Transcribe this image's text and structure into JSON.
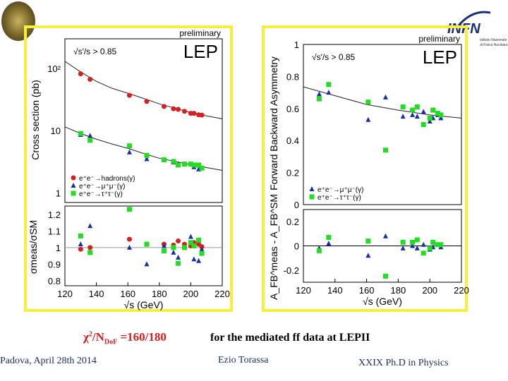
{
  "slide": {
    "formula_chi": "χ",
    "formula_sup": "2",
    "formula_n": "/N",
    "formula_sub": "DoF",
    "formula_val": " =160/180",
    "caption": "for the mediated ff data at LEPII",
    "footer_left": "Padova, April 28th 2014",
    "footer_center": "Ezio Torassa",
    "footer_right": "XXIX  Ph.D in Physics",
    "logo_right_text": "INFN",
    "logo_right_sub1": "Istituto Nazionale",
    "logo_right_sub2": "di Fisica Nucleare",
    "colors": {
      "frame": "#f5f03a",
      "highlight": "#d42020",
      "text_blue": "#1a2e5a"
    }
  },
  "chart_data": [
    {
      "type": "scatter",
      "preliminary": "preliminary",
      "label": "LEP",
      "cut": "√s′/s > 0.85",
      "ylabel": "Cross section (pb)",
      "yscale": "log",
      "ylim": [
        0.7,
        300
      ],
      "yticks": [
        "10²",
        "10",
        "1"
      ],
      "x": [
        130,
        136,
        161,
        172,
        183,
        189,
        192,
        196,
        200,
        202,
        205,
        207
      ],
      "series": [
        {
          "name": "e⁺e⁻→hadrons(γ)",
          "color": "#d42020",
          "marker": "circle",
          "values": [
            82,
            67,
            37,
            29.5,
            24.5,
            22.5,
            22,
            20.5,
            19,
            19,
            18,
            17.8
          ]
        },
        {
          "name": "e⁺e⁻→μ⁺μ⁻(γ)",
          "color": "#1a2ea8",
          "marker": "triangle",
          "values": [
            8.6,
            8.3,
            4.5,
            3.5,
            3.4,
            3.1,
            2.9,
            2.9,
            2.9,
            2.6,
            2.4,
            2.5
          ]
        },
        {
          "name": "e⁺e⁻→τ⁺τ⁻(γ)",
          "color": "#22dd22",
          "marker": "square",
          "values": [
            9.0,
            7.0,
            5.7,
            4.0,
            3.4,
            3.2,
            2.8,
            2.9,
            2.9,
            2.8,
            2.8,
            2.5
          ]
        }
      ],
      "sm_curves": {
        "x": [
          120,
          130,
          140,
          150,
          160,
          170,
          180,
          190,
          200,
          210,
          220
        ],
        "hadrons": [
          130,
          88,
          62,
          48,
          40,
          33,
          27,
          23,
          19.5,
          17.3,
          15.5
        ],
        "leptons": [
          11.5,
          9,
          7.3,
          6.1,
          5.2,
          4.3,
          3.6,
          3.2,
          2.85,
          2.55,
          2.3
        ]
      }
    },
    {
      "type": "scatter",
      "ylabel": "σmeas/σSM",
      "ylim": [
        0.77,
        1.25
      ],
      "yticks": [
        1.2,
        1.1,
        1,
        0.9,
        0.8
      ],
      "xlabel": "√s (GeV)",
      "xlim": [
        120,
        220
      ],
      "xticks": [
        120,
        140,
        160,
        180,
        200,
        220
      ],
      "reference": 1,
      "x": [
        130,
        136,
        161,
        172,
        183,
        189,
        192,
        196,
        200,
        202,
        205,
        207
      ],
      "series": [
        {
          "marker": "circle",
          "color": "#d42020",
          "values": [
            0.99,
            1.0,
            1.05,
            1.02,
            1.02,
            1.015,
            1.04,
            1.02,
            1.01,
            1.03,
            1.02,
            1.005
          ]
        },
        {
          "marker": "triangle",
          "color": "#1a2ea8",
          "values": [
            1.02,
            1.13,
            1.0,
            0.9,
            1.01,
            0.97,
            0.94,
            1.0,
            1.065,
            0.93,
            0.92,
            0.99
          ]
        },
        {
          "marker": "square",
          "color": "#22dd22",
          "values": [
            1.07,
            0.97,
            1.23,
            1.02,
            0.98,
            1.0,
            0.905,
            1.0,
            1.03,
            1.01,
            1.045,
            0.965
          ]
        }
      ]
    },
    {
      "type": "scatter",
      "preliminary": "preliminary",
      "label": "LEP",
      "cut": "√s′/s > 0.85",
      "ylabel": "Forward Backward Asymmetry",
      "ylim": [
        0,
        1
      ],
      "yticks": [
        1,
        0.8,
        0.6,
        0.4,
        0.2,
        0
      ],
      "x": [
        130,
        136,
        161,
        172,
        183,
        189,
        192,
        196,
        200,
        202,
        205,
        207
      ],
      "series": [
        {
          "name": "e⁺e⁻→μ⁺μ⁻(γ)",
          "color": "#1a2ea8",
          "marker": "triangle",
          "values": [
            0.69,
            0.7,
            0.53,
            0.67,
            0.55,
            0.56,
            0.55,
            0.58,
            0.52,
            0.54,
            0.56,
            0.54
          ]
        },
        {
          "name": "e⁺e⁻→τ⁺τ⁻(γ)",
          "color": "#22dd22",
          "marker": "square",
          "values": [
            0.66,
            0.75,
            0.64,
            0.34,
            0.61,
            0.59,
            0.61,
            0.5,
            0.54,
            0.59,
            0.57,
            0.56
          ]
        }
      ],
      "sm_curve": {
        "x": [
          120,
          140,
          160,
          180,
          200,
          220
        ],
        "values": [
          0.735,
          0.68,
          0.625,
          0.59,
          0.56,
          0.54
        ]
      }
    },
    {
      "type": "scatter",
      "ylabel": "A_FB^meas - A_FB^SM",
      "ylim": [
        -0.3,
        0.3
      ],
      "yticks": [
        0.2,
        0,
        -0.2
      ],
      "xlabel": "√s (GeV)",
      "xlim": [
        120,
        220
      ],
      "xticks": [
        120,
        140,
        160,
        180,
        200,
        220
      ],
      "reference": 0,
      "x": [
        130,
        136,
        161,
        172,
        183,
        189,
        192,
        196,
        200,
        202,
        205,
        207
      ],
      "series": [
        {
          "marker": "triangle",
          "color": "#1a2ea8",
          "values": [
            -0.02,
            0.02,
            -0.08,
            0.08,
            -0.02,
            0,
            -0.02,
            0.01,
            -0.03,
            -0.01,
            0.01,
            -0.01
          ]
        },
        {
          "marker": "square",
          "color": "#22dd22",
          "values": [
            -0.04,
            0.07,
            0.04,
            -0.25,
            0.03,
            0.03,
            0.05,
            -0.06,
            -0.02,
            0.03,
            0.01,
            0.01
          ]
        }
      ]
    }
  ]
}
